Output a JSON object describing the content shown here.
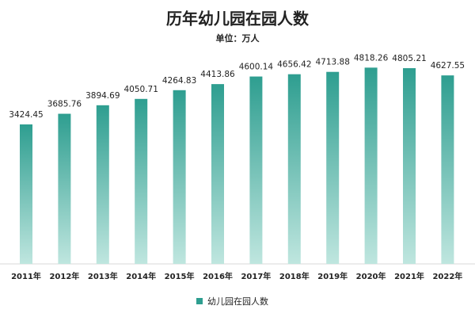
{
  "chart_data": {
    "type": "bar",
    "title": "历年幼儿园在园人数",
    "subtitle": "单位：万人",
    "categories": [
      "2011年",
      "2012年",
      "2013年",
      "2014年",
      "2015年",
      "2016年",
      "2017年",
      "2018年",
      "2019年",
      "2020年",
      "2021年",
      "2022年"
    ],
    "series": [
      {
        "name": "幼儿园在园人数",
        "color": "#2e9e90",
        "values": [
          3424.45,
          3685.76,
          3894.69,
          4050.71,
          4264.83,
          4413.86,
          4600.14,
          4656.42,
          4713.88,
          4818.26,
          4805.21,
          4627.55
        ]
      }
    ],
    "ylim": [
      0,
      5000
    ]
  }
}
